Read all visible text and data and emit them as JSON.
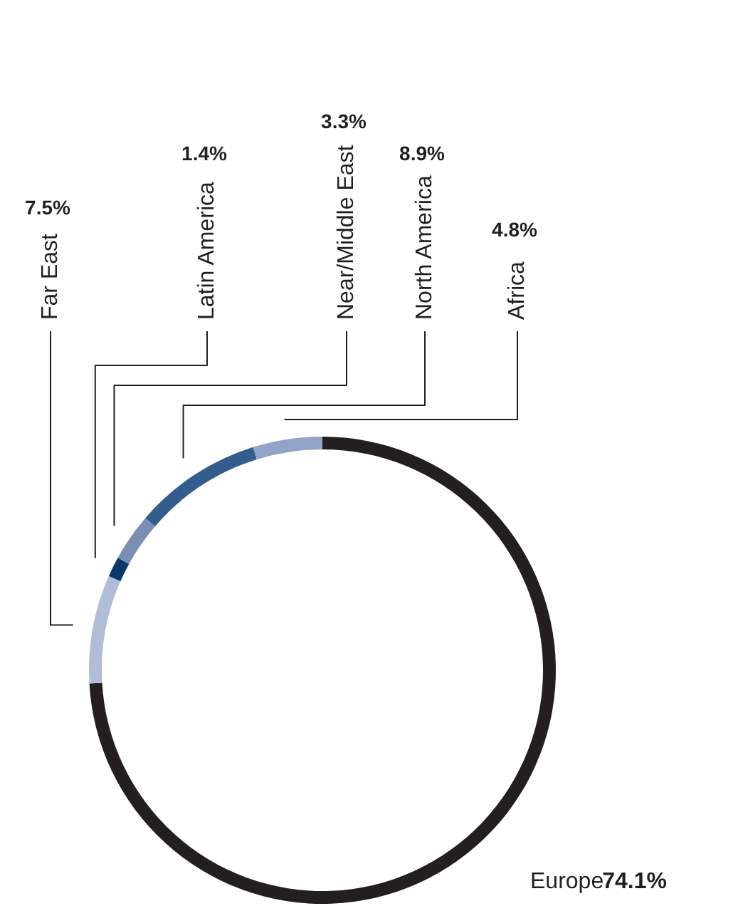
{
  "chart_data": {
    "type": "donut",
    "categories": [
      "Europe",
      "Far East",
      "Latin America",
      "Near/Middle East",
      "North America",
      "Africa"
    ],
    "values": [
      74.1,
      7.5,
      1.4,
      3.3,
      8.9,
      4.8
    ],
    "colors": [
      "#231f20",
      "#b0bdd6",
      "#0b386b",
      "#7a8fb4",
      "#335d8d",
      "#91a3c6"
    ],
    "value_labels": [
      "74.1%",
      "7.5%",
      "1.4%",
      "3.3%",
      "8.9%",
      "4.8%"
    ]
  }
}
